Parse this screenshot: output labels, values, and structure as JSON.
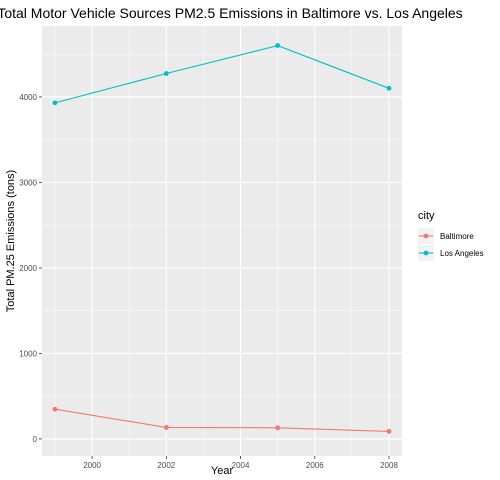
{
  "chart_data": {
    "type": "line",
    "title": "Total Motor Vehicle Sources PM2.5 Emissions in Baltimore vs. Los Angeles",
    "xlabel": "Year",
    "ylabel": "Total PM.25 Emissions (tons)",
    "x": [
      1999,
      2002,
      2005,
      2008
    ],
    "xlim": [
      1998.65,
      2008.35
    ],
    "ylim": [
      -200,
      4830
    ],
    "xticks": [
      2000,
      2002,
      2004,
      2006,
      2008
    ],
    "yticks": [
      0,
      1000,
      2000,
      3000,
      4000
    ],
    "grid": true,
    "legend": {
      "title": "city",
      "position": "right"
    },
    "series": [
      {
        "name": "Baltimore",
        "color": "#F8766D",
        "values": [
          347,
          134,
          130,
          88
        ]
      },
      {
        "name": "Los Angeles",
        "color": "#00BFC4",
        "values": [
          3931,
          4274,
          4601,
          4101
        ]
      }
    ]
  }
}
